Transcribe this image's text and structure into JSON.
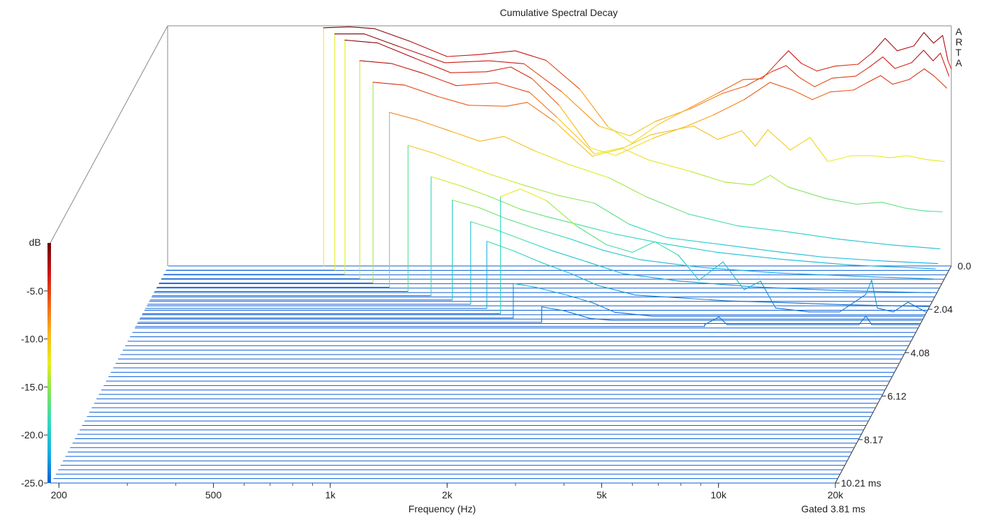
{
  "chart_data": {
    "type": "waterfall",
    "title": "Cumulative Spectral Decay",
    "watermark": "ARTA",
    "xlabel": "Frequency (Hz)",
    "x_scale": "log",
    "xlim": [
      190,
      20000
    ],
    "x_tick_labels": [
      {
        "value": 200,
        "label": "200"
      },
      {
        "value": 500,
        "label": "500"
      },
      {
        "value": 1000,
        "label": "1k"
      },
      {
        "value": 2000,
        "label": "2k"
      },
      {
        "value": 5000,
        "label": "5k"
      },
      {
        "value": 10000,
        "label": "10k"
      },
      {
        "value": 20000,
        "label": "20k"
      }
    ],
    "ylabel": "dB",
    "ylim": [
      -25,
      0
    ],
    "y_tick_labels": [
      {
        "value": -5,
        "label": "-5.0"
      },
      {
        "value": -10,
        "label": "-10.0"
      },
      {
        "value": -15,
        "label": "-15.0"
      },
      {
        "value": -20,
        "label": "-20.0"
      },
      {
        "value": -25,
        "label": "-25.0"
      }
    ],
    "right_zero_label": "0.0",
    "time_unit_label": "ms",
    "time_ticks": [
      {
        "value": 2.04,
        "label": "2.04"
      },
      {
        "value": 4.08,
        "label": "4.08"
      },
      {
        "value": 6.12,
        "label": "6.12"
      },
      {
        "value": 8.17,
        "label": "8.17"
      },
      {
        "value": 10.21,
        "label": "10.21 ms"
      }
    ],
    "tlim": [
      0,
      10.21
    ],
    "slice_count": 50,
    "gated_label": "Gated 3.81 ms",
    "colorscale": [
      "#0a5fd6",
      "#12b0e0",
      "#2fd8c0",
      "#7ee35a",
      "#e8ee1c",
      "#f9b51a",
      "#ee6116",
      "#cc1212",
      "#6e0000"
    ],
    "slices": [
      {
        "t": 0.0,
        "cutoff_hz": 480,
        "points": [
          [
            480,
            -0.2
          ],
          [
            560,
            -0.1
          ],
          [
            650,
            -0.3
          ],
          [
            800,
            -1.6
          ],
          [
            1000,
            -3.2
          ],
          [
            1200,
            -3.0
          ],
          [
            1500,
            -2.6
          ],
          [
            1800,
            -3.6
          ],
          [
            2200,
            -6.6
          ],
          [
            2600,
            -10.5
          ],
          [
            3000,
            -12.2
          ],
          [
            3500,
            -10.3
          ],
          [
            4200,
            -8.6
          ],
          [
            5000,
            -7.0
          ],
          [
            5800,
            -5.6
          ],
          [
            6500,
            -5.5
          ],
          [
            7200,
            -3.6
          ],
          [
            7600,
            -2.6
          ],
          [
            8200,
            -3.9
          ],
          [
            9000,
            -4.7
          ],
          [
            10000,
            -4.2
          ],
          [
            11500,
            -4.0
          ],
          [
            12500,
            -2.8
          ],
          [
            13500,
            -1.3
          ],
          [
            14500,
            -2.6
          ],
          [
            16000,
            -2.1
          ],
          [
            17000,
            -0.7
          ],
          [
            18000,
            -1.8
          ],
          [
            19000,
            -1.0
          ],
          [
            19600,
            -3.6
          ],
          [
            20000,
            -4.5
          ]
        ]
      },
      {
        "t": 0.2,
        "cutoff_hz": 520,
        "points": [
          [
            520,
            -0.4
          ],
          [
            620,
            -0.4
          ],
          [
            760,
            -1.7
          ],
          [
            1000,
            -3.4
          ],
          [
            1300,
            -3.2
          ],
          [
            1600,
            -3.5
          ],
          [
            2000,
            -6.4
          ],
          [
            2500,
            -10.0
          ],
          [
            3000,
            -11.0
          ],
          [
            3500,
            -9.5
          ],
          [
            4300,
            -8.2
          ],
          [
            5200,
            -6.6
          ],
          [
            6000,
            -5.8
          ],
          [
            7000,
            -4.3
          ],
          [
            7600,
            -3.7
          ],
          [
            8200,
            -4.9
          ],
          [
            9000,
            -5.9
          ],
          [
            10000,
            -5.0
          ],
          [
            11500,
            -4.8
          ],
          [
            12500,
            -3.8
          ],
          [
            13500,
            -2.8
          ],
          [
            14500,
            -4.0
          ],
          [
            16000,
            -3.4
          ],
          [
            17200,
            -2.1
          ],
          [
            18200,
            -3.2
          ],
          [
            19000,
            -2.4
          ],
          [
            20000,
            -4.8
          ]
        ]
      },
      {
        "t": 0.4,
        "cutoff_hz": 560,
        "points": [
          [
            560,
            -0.6
          ],
          [
            680,
            -0.9
          ],
          [
            850,
            -2.5
          ],
          [
            1050,
            -4.0
          ],
          [
            1300,
            -3.9
          ],
          [
            1500,
            -3.4
          ],
          [
            1700,
            -4.6
          ],
          [
            2000,
            -7.4
          ],
          [
            2400,
            -11.8
          ],
          [
            2800,
            -12.6
          ],
          [
            3500,
            -10.8
          ],
          [
            4300,
            -9.5
          ],
          [
            5000,
            -8.4
          ],
          [
            6000,
            -6.8
          ],
          [
            7000,
            -5.0
          ],
          [
            8000,
            -5.8
          ],
          [
            9000,
            -6.8
          ],
          [
            10000,
            -6.0
          ],
          [
            11500,
            -5.8
          ],
          [
            12500,
            -5.0
          ],
          [
            13500,
            -4.3
          ],
          [
            14500,
            -5.2
          ],
          [
            16000,
            -4.7
          ],
          [
            17500,
            -3.6
          ],
          [
            18500,
            -4.3
          ],
          [
            20000,
            -5.6
          ]
        ]
      },
      {
        "t": 0.6,
        "cutoff_hz": 620,
        "points": [
          [
            620,
            -2.3
          ],
          [
            750,
            -2.6
          ],
          [
            900,
            -3.6
          ],
          [
            1100,
            -4.9
          ],
          [
            1400,
            -4.6
          ],
          [
            1700,
            -5.6
          ],
          [
            2000,
            -8.2
          ],
          [
            2500,
            -12.0
          ],
          [
            3000,
            -11.3
          ],
          [
            3500,
            -10.0
          ],
          [
            4500,
            -9.1
          ],
          [
            5200,
            -10.5
          ],
          [
            6000,
            -9.6
          ],
          [
            6500,
            -11.2
          ],
          [
            7000,
            -9.5
          ],
          [
            8000,
            -11.6
          ],
          [
            9000,
            -10.3
          ],
          [
            10000,
            -12.8
          ],
          [
            11500,
            -12.2
          ],
          [
            13000,
            -12.2
          ],
          [
            14500,
            -12.4
          ],
          [
            16000,
            -12.2
          ],
          [
            18000,
            -12.6
          ],
          [
            20000,
            -12.8
          ]
        ]
      },
      {
        "t": 0.8,
        "cutoff_hz": 680,
        "points": [
          [
            680,
            -4.1
          ],
          [
            820,
            -4.4
          ],
          [
            1000,
            -5.6
          ],
          [
            1200,
            -6.5
          ],
          [
            1500,
            -6.6
          ],
          [
            1700,
            -6.2
          ],
          [
            2000,
            -8.2
          ],
          [
            2500,
            -11.8
          ],
          [
            3000,
            -11.0
          ],
          [
            3500,
            -12.2
          ],
          [
            4500,
            -13.4
          ],
          [
            5500,
            -14.5
          ],
          [
            6500,
            -14.8
          ],
          [
            7200,
            -13.8
          ],
          [
            8000,
            -15.0
          ],
          [
            10000,
            -16.2
          ],
          [
            12000,
            -16.8
          ],
          [
            14000,
            -16.6
          ],
          [
            16000,
            -17.2
          ],
          [
            18000,
            -17.5
          ],
          [
            20000,
            -17.6
          ]
        ]
      },
      {
        "t": 1.0,
        "cutoff_hz": 760,
        "points": [
          [
            760,
            -6.8
          ],
          [
            900,
            -7.6
          ],
          [
            1100,
            -8.8
          ],
          [
            1300,
            -9.8
          ],
          [
            1500,
            -9.3
          ],
          [
            1800,
            -10.8
          ],
          [
            2200,
            -12.2
          ],
          [
            2800,
            -13.6
          ],
          [
            3500,
            -15.6
          ],
          [
            4500,
            -17.4
          ],
          [
            6000,
            -18.6
          ],
          [
            8000,
            -19.2
          ],
          [
            11000,
            -20.0
          ],
          [
            15000,
            -20.6
          ],
          [
            20000,
            -21.0
          ]
        ]
      },
      {
        "t": 1.2,
        "cutoff_hz": 860,
        "points": [
          [
            860,
            -9.8
          ],
          [
            1000,
            -10.6
          ],
          [
            1200,
            -11.8
          ],
          [
            1400,
            -12.8
          ],
          [
            1700,
            -13.9
          ],
          [
            2100,
            -15.0
          ],
          [
            2600,
            -15.8
          ],
          [
            3200,
            -18.0
          ],
          [
            4000,
            -19.4
          ],
          [
            5500,
            -20.1
          ],
          [
            7500,
            -20.8
          ],
          [
            10000,
            -21.4
          ],
          [
            14000,
            -21.8
          ],
          [
            20000,
            -22.1
          ]
        ]
      },
      {
        "t": 1.4,
        "cutoff_hz": 1000,
        "points": [
          [
            1000,
            -12.6
          ],
          [
            1200,
            -13.6
          ],
          [
            1400,
            -14.6
          ],
          [
            1700,
            -16.0
          ],
          [
            2000,
            -16.8
          ],
          [
            2400,
            -17.6
          ],
          [
            3000,
            -18.6
          ],
          [
            4000,
            -19.6
          ],
          [
            5500,
            -20.5
          ],
          [
            8000,
            -21.2
          ],
          [
            12000,
            -21.8
          ],
          [
            20000,
            -22.2
          ]
        ]
      },
      {
        "t": 1.6,
        "cutoff_hz": 1150,
        "points": [
          [
            1150,
            -14.6
          ],
          [
            1350,
            -15.4
          ],
          [
            1600,
            -16.6
          ],
          [
            1900,
            -17.6
          ],
          [
            2300,
            -18.6
          ],
          [
            2800,
            -19.8
          ],
          [
            3500,
            -20.8
          ],
          [
            5000,
            -21.6
          ],
          [
            8000,
            -22.2
          ],
          [
            14000,
            -22.6
          ],
          [
            20000,
            -22.8
          ]
        ]
      },
      {
        "t": 1.8,
        "cutoff_hz": 1300,
        "points": [
          [
            1300,
            -16.4
          ],
          [
            1500,
            -17.2
          ],
          [
            1800,
            -18.4
          ],
          [
            2100,
            -19.4
          ],
          [
            2600,
            -20.6
          ],
          [
            3200,
            -21.8
          ],
          [
            4500,
            -22.6
          ],
          [
            7000,
            -23.2
          ],
          [
            12000,
            -23.6
          ],
          [
            20000,
            -23.8
          ]
        ]
      },
      {
        "t": 2.0,
        "cutoff_hz": 1450,
        "points": [
          [
            1450,
            -18.0
          ],
          [
            1700,
            -19.0
          ],
          [
            2000,
            -20.2
          ],
          [
            2400,
            -21.4
          ],
          [
            2800,
            -22.6
          ],
          [
            3500,
            -23.6
          ],
          [
            6000,
            -24.2
          ],
          [
            12000,
            -24.6
          ],
          [
            20000,
            -24.8
          ]
        ]
      },
      {
        "t": 2.25,
        "cutoff_hz": 1600,
        "points": [
          [
            1600,
            -12.8
          ],
          [
            1800,
            -12.0
          ],
          [
            2100,
            -13.2
          ],
          [
            2500,
            -15.8
          ],
          [
            3000,
            -17.8
          ],
          [
            3500,
            -18.6
          ],
          [
            4000,
            -17.5
          ],
          [
            4600,
            -18.9
          ],
          [
            5200,
            -21.5
          ],
          [
            6000,
            -19.6
          ],
          [
            6800,
            -22.5
          ],
          [
            7500,
            -21.6
          ],
          [
            8200,
            -24.4
          ],
          [
            10000,
            -24.8
          ],
          [
            12000,
            -24.8
          ],
          [
            14000,
            -23.0
          ],
          [
            14500,
            -21.5
          ],
          [
            15000,
            -24.4
          ],
          [
            16500,
            -24.8
          ],
          [
            18000,
            -23.8
          ],
          [
            20000,
            -24.8
          ]
        ]
      },
      {
        "t": 2.45,
        "cutoff_hz": 1750,
        "points": [
          [
            1750,
            -21.4
          ],
          [
            2000,
            -21.8
          ],
          [
            2400,
            -22.6
          ],
          [
            2800,
            -23.4
          ],
          [
            3200,
            -24.4
          ],
          [
            4000,
            -24.8
          ],
          [
            6000,
            -24.8
          ],
          [
            10000,
            -24.8
          ],
          [
            20000,
            -24.8
          ]
        ]
      },
      {
        "t": 2.65,
        "cutoff_hz": 2100,
        "points": [
          [
            2100,
            -23.4
          ],
          [
            2400,
            -23.8
          ],
          [
            2800,
            -24.6
          ],
          [
            3200,
            -24.8
          ],
          [
            6000,
            -24.8
          ],
          [
            20000,
            -24.8
          ]
        ]
      },
      {
        "t": 2.85,
        "cutoff_hz": 5600,
        "points": [
          [
            5600,
            -24.8
          ],
          [
            6100,
            -24.0
          ],
          [
            6400,
            -24.8
          ],
          [
            14000,
            -24.8
          ],
          [
            14600,
            -23.9
          ],
          [
            15100,
            -24.8
          ],
          [
            20000,
            -24.8
          ]
        ]
      }
    ]
  }
}
